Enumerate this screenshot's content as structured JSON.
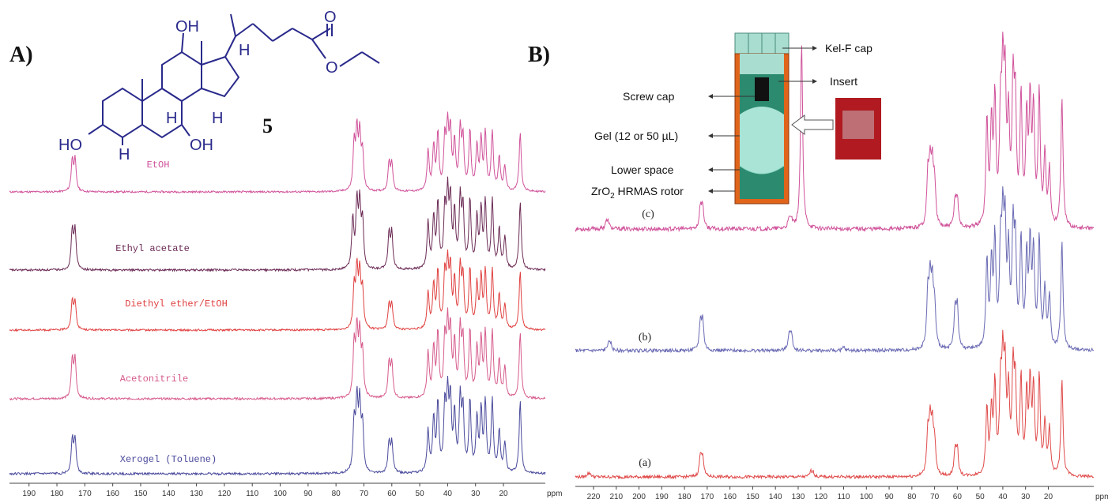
{
  "panel_a": {
    "label": "A)",
    "compound_number": "5",
    "structure_atoms": [
      "OH",
      "H",
      "O",
      "O",
      "H",
      "H",
      "HO",
      "H",
      "OH"
    ]
  },
  "panel_b": {
    "label": "B)",
    "rotor_labels": {
      "kel_f_cap": "Kel-F cap",
      "insert": "Insert",
      "screw_cap": "Screw cap",
      "gel": "Gel (12 or 50 µL)",
      "lower_space": "Lower space",
      "rotor_prefix": "ZrO",
      "rotor_sub": "2",
      "rotor_suffix": " HRMAS rotor"
    },
    "colors": {
      "cap": "#a8ddd0",
      "sleeve": "#e0641a",
      "insert": "#2c8a6e",
      "gel": "#a9e4d6",
      "photo": "#b01a20"
    }
  },
  "chart_data": [
    {
      "type": "line",
      "title": "",
      "xlabel": "ppm",
      "xlim": [
        197,
        5
      ],
      "x_reversed": true,
      "ticks": [
        190,
        180,
        170,
        160,
        150,
        140,
        130,
        120,
        110,
        100,
        90,
        80,
        70,
        60,
        50,
        40,
        30,
        20
      ],
      "series": [
        {
          "name": "EtOH",
          "color": "#d0529a",
          "peaks": [
            [
              174.5,
              0.5
            ],
            [
              173.5,
              0.5
            ],
            [
              73.5,
              0.75
            ],
            [
              72.5,
              0.9
            ],
            [
              71.5,
              0.85
            ],
            [
              70.5,
              0.6
            ],
            [
              61.0,
              0.45
            ],
            [
              60.0,
              0.45
            ],
            [
              47.0,
              0.65
            ],
            [
              45.0,
              0.7
            ],
            [
              43.5,
              0.9
            ],
            [
              41.0,
              0.8
            ],
            [
              40.0,
              0.95
            ],
            [
              39.0,
              0.9
            ],
            [
              37.5,
              0.75
            ],
            [
              35.5,
              0.95
            ],
            [
              34.5,
              0.8
            ],
            [
              32.0,
              0.95
            ],
            [
              29.5,
              0.7
            ],
            [
              28.0,
              0.8
            ],
            [
              26.5,
              0.9
            ],
            [
              24.0,
              0.95
            ],
            [
              21.5,
              0.55
            ],
            [
              19.5,
              0.4
            ],
            [
              14.0,
              0.95
            ]
          ]
        },
        {
          "name": "Ethyl acetate",
          "color": "#6b2a55",
          "peaks": [
            [
              174.5,
              0.55
            ],
            [
              173.5,
              0.55
            ],
            [
              74.0,
              0.7
            ],
            [
              72.5,
              0.9
            ],
            [
              71.5,
              0.85
            ],
            [
              70.5,
              0.65
            ],
            [
              61.0,
              0.5
            ],
            [
              60.0,
              0.5
            ],
            [
              47.0,
              0.65
            ],
            [
              45.0,
              0.7
            ],
            [
              43.5,
              0.9
            ],
            [
              41.0,
              0.8
            ],
            [
              40.0,
              0.95
            ],
            [
              39.0,
              0.9
            ],
            [
              37.5,
              0.75
            ],
            [
              35.5,
              0.95
            ],
            [
              34.5,
              0.8
            ],
            [
              32.0,
              0.95
            ],
            [
              29.5,
              0.7
            ],
            [
              28.0,
              0.8
            ],
            [
              26.5,
              0.9
            ],
            [
              24.0,
              0.95
            ],
            [
              21.5,
              0.55
            ],
            [
              19.5,
              0.45
            ],
            [
              14.0,
              0.95
            ]
          ]
        },
        {
          "name": "Diethyl ether/EtOH",
          "color": "#e04040",
          "peaks": [
            [
              174.5,
              0.45
            ],
            [
              173.5,
              0.45
            ],
            [
              73.5,
              0.65
            ],
            [
              72.5,
              0.9
            ],
            [
              71.5,
              0.85
            ],
            [
              70.5,
              0.6
            ],
            [
              61.0,
              0.4
            ],
            [
              60.0,
              0.4
            ],
            [
              47.0,
              0.6
            ],
            [
              45.0,
              0.7
            ],
            [
              43.5,
              0.9
            ],
            [
              41.0,
              0.85
            ],
            [
              40.0,
              0.95
            ],
            [
              39.0,
              0.9
            ],
            [
              37.5,
              0.75
            ],
            [
              35.5,
              0.95
            ],
            [
              34.5,
              0.8
            ],
            [
              32.0,
              0.95
            ],
            [
              29.5,
              0.7
            ],
            [
              28.0,
              0.8
            ],
            [
              26.5,
              0.9
            ],
            [
              24.0,
              0.95
            ],
            [
              21.5,
              0.55
            ],
            [
              19.5,
              0.4
            ],
            [
              14.0,
              0.95
            ]
          ]
        },
        {
          "name": "Acetonitrile",
          "color": "#d65b8c",
          "peaks": [
            [
              174.5,
              0.55
            ],
            [
              173.5,
              0.55
            ],
            [
              73.5,
              0.75
            ],
            [
              72.5,
              0.9
            ],
            [
              71.5,
              0.85
            ],
            [
              70.5,
              0.6
            ],
            [
              61.0,
              0.5
            ],
            [
              60.0,
              0.5
            ],
            [
              47.0,
              0.65
            ],
            [
              45.0,
              0.7
            ],
            [
              43.5,
              0.9
            ],
            [
              41.0,
              0.8
            ],
            [
              40.0,
              0.95
            ],
            [
              39.0,
              0.9
            ],
            [
              37.5,
              0.75
            ],
            [
              35.5,
              0.95
            ],
            [
              34.5,
              0.8
            ],
            [
              32.0,
              0.95
            ],
            [
              29.5,
              0.7
            ],
            [
              28.0,
              0.8
            ],
            [
              26.5,
              0.9
            ],
            [
              24.0,
              0.95
            ],
            [
              21.5,
              0.55
            ],
            [
              19.5,
              0.45
            ],
            [
              14.0,
              0.95
            ]
          ]
        },
        {
          "name": "Xerogel (Toluene)",
          "color": "#4a4a9c",
          "peaks": [
            [
              174.5,
              0.45
            ],
            [
              173.5,
              0.45
            ],
            [
              73.5,
              0.65
            ],
            [
              72.5,
              0.9
            ],
            [
              71.5,
              0.85
            ],
            [
              70.5,
              0.6
            ],
            [
              61.0,
              0.4
            ],
            [
              60.0,
              0.4
            ],
            [
              47.0,
              0.55
            ],
            [
              45.0,
              0.7
            ],
            [
              43.5,
              0.9
            ],
            [
              41.0,
              0.85
            ],
            [
              40.0,
              0.95
            ],
            [
              39.0,
              0.9
            ],
            [
              37.5,
              0.75
            ],
            [
              35.5,
              0.95
            ],
            [
              34.5,
              0.8
            ],
            [
              32.0,
              0.95
            ],
            [
              29.5,
              0.7
            ],
            [
              28.0,
              0.8
            ],
            [
              26.5,
              0.9
            ],
            [
              24.0,
              0.95
            ],
            [
              21.5,
              0.55
            ],
            [
              19.5,
              0.4
            ],
            [
              14.0,
              0.95
            ]
          ]
        }
      ]
    },
    {
      "type": "line",
      "title": "",
      "xlabel": "ppm",
      "xlim": [
        228,
        0
      ],
      "x_reversed": true,
      "ticks": [
        220,
        210,
        200,
        190,
        180,
        170,
        160,
        150,
        140,
        130,
        120,
        110,
        100,
        90,
        80,
        70,
        60,
        50,
        40,
        30,
        20
      ],
      "series": [
        {
          "name": "(c)",
          "color": "#d0529a",
          "peaks": [
            [
              214.5,
              0.05
            ],
            [
              213.5,
              0.05
            ],
            [
              173.0,
              0.16
            ],
            [
              172.0,
              0.16
            ],
            [
              134.0,
              0.06
            ],
            [
              133.0,
              0.06
            ],
            [
              128.5,
              1.35
            ],
            [
              73.0,
              0.35
            ],
            [
              72.0,
              0.42
            ],
            [
              71.0,
              0.4
            ],
            [
              70.0,
              0.3
            ],
            [
              61.0,
              0.2
            ],
            [
              60.0,
              0.2
            ],
            [
              47.0,
              0.75
            ],
            [
              45.0,
              0.7
            ],
            [
              43.5,
              0.88
            ],
            [
              41.0,
              0.75
            ],
            [
              40.0,
              0.95
            ],
            [
              39.0,
              0.9
            ],
            [
              37.5,
              0.7
            ],
            [
              35.5,
              0.95
            ],
            [
              34.5,
              0.8
            ],
            [
              32.0,
              0.9
            ],
            [
              29.5,
              0.75
            ],
            [
              28.0,
              0.85
            ],
            [
              26.5,
              0.8
            ],
            [
              24.0,
              0.95
            ],
            [
              21.5,
              0.5
            ],
            [
              19.5,
              0.4
            ],
            [
              14.0,
              0.95
            ]
          ]
        },
        {
          "name": "(b)",
          "color": "#6a6ab4",
          "peaks": [
            [
              213.5,
              0.06
            ],
            [
              212.5,
              0.06
            ],
            [
              173.0,
              0.25
            ],
            [
              172.0,
              0.25
            ],
            [
              134.0,
              0.14
            ],
            [
              133.0,
              0.14
            ],
            [
              110.0,
              0.03
            ],
            [
              73.0,
              0.45
            ],
            [
              72.0,
              0.55
            ],
            [
              71.0,
              0.5
            ],
            [
              70.0,
              0.35
            ],
            [
              61.0,
              0.35
            ],
            [
              60.0,
              0.35
            ],
            [
              47.0,
              0.75
            ],
            [
              45.0,
              0.7
            ],
            [
              43.5,
              0.9
            ],
            [
              41.0,
              0.8
            ],
            [
              40.0,
              0.95
            ],
            [
              39.0,
              0.9
            ],
            [
              37.5,
              0.75
            ],
            [
              35.5,
              0.95
            ],
            [
              34.5,
              0.8
            ],
            [
              32.0,
              0.92
            ],
            [
              29.5,
              0.75
            ],
            [
              28.0,
              0.85
            ],
            [
              26.5,
              0.8
            ],
            [
              24.0,
              0.95
            ],
            [
              21.5,
              0.5
            ],
            [
              19.5,
              0.45
            ],
            [
              14.0,
              0.95
            ]
          ]
        },
        {
          "name": "(a)",
          "color": "#e04a4a",
          "peaks": [
            [
              222.5,
              0.03
            ],
            [
              221.5,
              0.03
            ],
            [
              173.0,
              0.2
            ],
            [
              172.0,
              0.2
            ],
            [
              124.5,
              0.05
            ],
            [
              123.5,
              0.05
            ],
            [
              73.0,
              0.4
            ],
            [
              72.0,
              0.5
            ],
            [
              71.0,
              0.45
            ],
            [
              70.0,
              0.3
            ],
            [
              61.0,
              0.25
            ],
            [
              60.0,
              0.25
            ],
            [
              47.0,
              0.65
            ],
            [
              45.0,
              0.6
            ],
            [
              43.5,
              0.85
            ],
            [
              41.0,
              0.8
            ],
            [
              40.0,
              0.95
            ],
            [
              39.0,
              0.9
            ],
            [
              37.5,
              0.75
            ],
            [
              35.5,
              0.95
            ],
            [
              34.5,
              0.8
            ],
            [
              32.0,
              0.92
            ],
            [
              29.5,
              0.75
            ],
            [
              28.0,
              0.85
            ],
            [
              26.5,
              0.8
            ],
            [
              24.0,
              0.95
            ],
            [
              21.5,
              0.5
            ],
            [
              19.5,
              0.45
            ],
            [
              14.0,
              0.95
            ]
          ]
        }
      ]
    }
  ]
}
